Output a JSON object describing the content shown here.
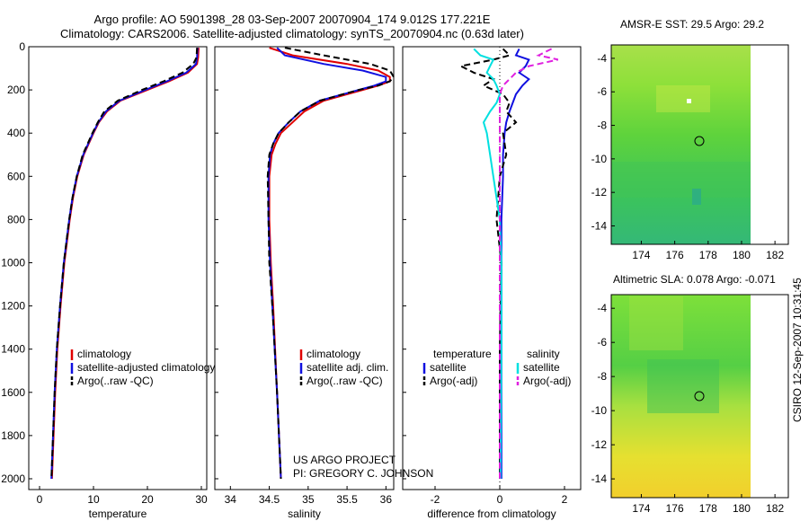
{
  "header": {
    "line1": "Argo profile: AO 5901398_28 03-Sep-2007 20070904_174 9.012S 177.221E",
    "line2": "Climatology: CARS2006. Satellite-adjusted climatology: synTS_20070904.nc (0.63d later)"
  },
  "maps": {
    "sst": {
      "title": "AMSR-E SST: 29.5 Argo: 29.2"
    },
    "sla": {
      "title": "Altimetric SLA: 0.078 Argo: -0.071"
    },
    "xticks": [
      "174",
      "176",
      "178",
      "180",
      "182"
    ],
    "yticks": [
      "-4",
      "-6",
      "-8",
      "-10",
      "-12",
      "-14"
    ],
    "float_position": {
      "lon": 177.221,
      "lat": -9.012
    }
  },
  "timestamp": "CSIRO 12-Sep-2007 10:31:45",
  "credit": {
    "line1": "US ARGO PROJECT",
    "line2": "PI: GREGORY C. JOHNSON"
  },
  "colors": {
    "climatology": "#e00000",
    "satellite": "#1010e0",
    "argo": "#000000",
    "sal_sat": "#00e0e0",
    "sal_argo": "#e020e0"
  },
  "chart_data": [
    {
      "type": "line",
      "xlabel": "temperature",
      "ylabel": "",
      "xlim": [
        -2,
        31
      ],
      "ylim": [
        2050,
        0
      ],
      "xticks": [
        "0",
        "10",
        "20",
        "30"
      ],
      "xtick_values": [
        0,
        10,
        20,
        30
      ],
      "yticks": [
        "0",
        "200",
        "400",
        "600",
        "800",
        "1000",
        "1200",
        "1400",
        "1600",
        "1800",
        "2000"
      ],
      "ytick_values": [
        0,
        200,
        400,
        600,
        800,
        1000,
        1200,
        1400,
        1600,
        1800,
        2000
      ],
      "legend": [
        "climatology",
        "satellite-adjusted climatology",
        "Argo(..raw -QC)"
      ],
      "depth": [
        5,
        50,
        80,
        120,
        160,
        200,
        250,
        300,
        350,
        400,
        500,
        600,
        700,
        800,
        1000,
        1200,
        1400,
        1600,
        1800,
        2000
      ],
      "series": [
        {
          "name": "climatology",
          "values": [
            29.5,
            29.4,
            29.2,
            27.5,
            24,
            20,
            15,
            12.5,
            11,
            10,
            8.2,
            7,
            6.2,
            5.6,
            4.6,
            3.9,
            3.3,
            2.9,
            2.6,
            2.3
          ]
        },
        {
          "name": "satellite-adjusted climatology",
          "values": [
            29.3,
            29.2,
            29.0,
            27.2,
            23.6,
            19.6,
            14.8,
            12.3,
            10.9,
            9.9,
            8.1,
            6.9,
            6.1,
            5.5,
            4.5,
            3.8,
            3.2,
            2.8,
            2.5,
            2.2
          ]
        },
        {
          "name": "Argo(..raw -QC)",
          "values": [
            29.2,
            29.1,
            28.5,
            26.5,
            23,
            19,
            14.5,
            12,
            10.8,
            9.8,
            8.0,
            6.9,
            6.1,
            5.5,
            4.5,
            3.8,
            3.2,
            2.8,
            2.5,
            2.2
          ]
        }
      ]
    },
    {
      "type": "line",
      "xlabel": "salinity",
      "xlim": [
        33.8,
        36.1
      ],
      "ylim": [
        2050,
        0
      ],
      "xticks": [
        "34",
        "34.5",
        "35",
        "35.5",
        "36"
      ],
      "xtick_values": [
        34,
        34.5,
        35,
        35.5,
        36
      ],
      "legend": [
        "climatology",
        "satellite adj. clim.",
        "Argo(..raw -QC)"
      ],
      "depth": [
        5,
        40,
        80,
        110,
        140,
        160,
        180,
        200,
        250,
        300,
        350,
        400,
        450,
        500,
        600,
        800,
        1000,
        1200,
        1600,
        2000
      ],
      "series": [
        {
          "name": "climatology",
          "values": [
            34.5,
            34.8,
            35.5,
            35.9,
            36.05,
            36.05,
            35.9,
            35.7,
            35.2,
            34.95,
            34.8,
            34.65,
            34.58,
            34.53,
            34.5,
            34.5,
            34.52,
            34.55,
            34.6,
            34.65
          ]
        },
        {
          "name": "satellite adj. clim.",
          "values": [
            34.6,
            34.7,
            35.2,
            35.7,
            36.0,
            36.0,
            35.85,
            35.65,
            35.15,
            34.9,
            34.75,
            34.62,
            34.55,
            34.51,
            34.49,
            34.49,
            34.51,
            34.54,
            34.6,
            34.65
          ]
        },
        {
          "name": "Argo(..raw -QC)",
          "values": [
            34.7,
            35.2,
            35.8,
            36.05,
            36.1,
            36.05,
            35.9,
            35.65,
            35.15,
            34.9,
            34.75,
            34.62,
            34.55,
            34.5,
            34.48,
            34.49,
            34.5,
            34.54,
            34.6,
            34.65
          ]
        }
      ]
    },
    {
      "type": "line",
      "xlabel": "difference from climatology",
      "xlim": [
        -3,
        2.5
      ],
      "ylim": [
        2050,
        0
      ],
      "xticks": [
        "-2",
        "0",
        "2"
      ],
      "xtick_values": [
        -2,
        0,
        2
      ],
      "legend": [
        "temperature",
        "satellite",
        "Argo(-adj)",
        "salinity",
        "satellite",
        "Argo(-adj)"
      ],
      "depth": [
        10,
        40,
        60,
        90,
        120,
        150,
        180,
        220,
        260,
        300,
        350,
        400,
        500,
        600,
        800,
        1000,
        1400,
        2000
      ],
      "series": [
        {
          "name": "temperature satellite",
          "values": [
            0.6,
            0.5,
            0.9,
            0.8,
            0.6,
            0.9,
            0.7,
            0.5,
            0.4,
            0.3,
            0.2,
            0.15,
            0.1,
            0.1,
            0.05,
            0.05,
            0.05,
            0.05
          ]
        },
        {
          "name": "temperature Argo(-adj)",
          "values": [
            0.1,
            0.3,
            -0.2,
            -1.2,
            -0.8,
            -0.2,
            -0.5,
            0.1,
            0.3,
            0.2,
            0.5,
            0.1,
            0.2,
            0.0,
            -0.1,
            0.05,
            0.0,
            0.0
          ]
        },
        {
          "name": "salinity satellite",
          "values": [
            -0.8,
            -0.6,
            -0.2,
            -0.3,
            -0.4,
            -0.2,
            -0.1,
            0.0,
            -0.1,
            -0.3,
            -0.5,
            -0.4,
            -0.3,
            -0.2,
            0.0,
            0.05,
            0.05,
            0.02
          ]
        },
        {
          "name": "salinity Argo(-adj)",
          "values": [
            1.6,
            1.2,
            1.8,
            0.9,
            0.5,
            0.3,
            0.1,
            0.0,
            0.0,
            0.0,
            0.0,
            0.0,
            0.0,
            0.0,
            0.0,
            0.0,
            0.0,
            0.0
          ]
        }
      ]
    }
  ]
}
